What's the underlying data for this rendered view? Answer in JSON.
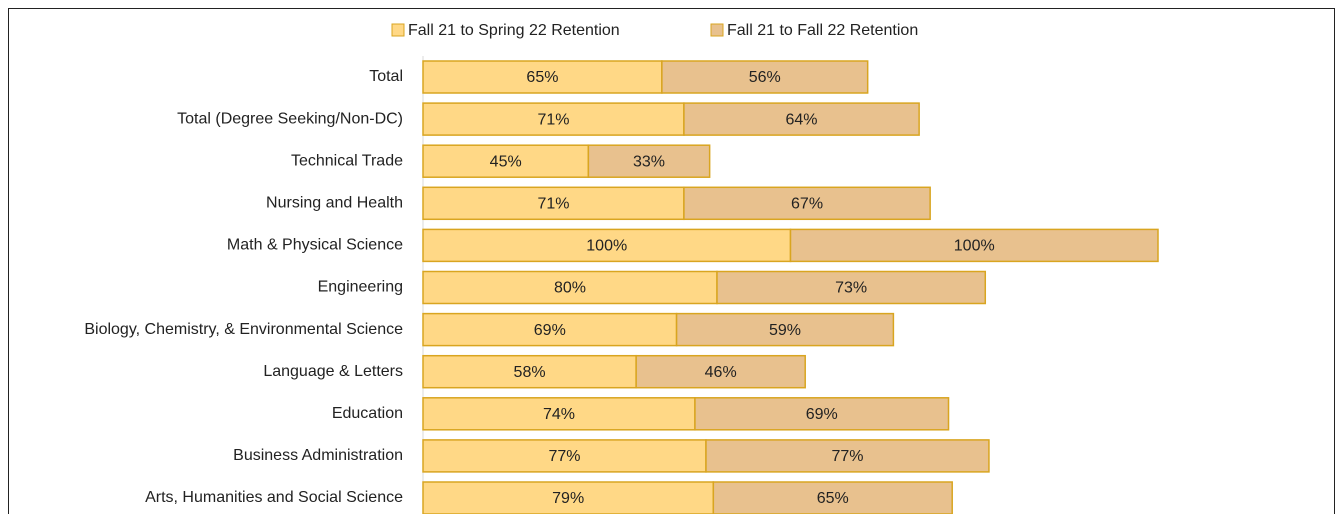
{
  "chart_data": {
    "type": "stacked-bar-horizontal",
    "categories": [
      "Total",
      "Total (Degree Seeking/Non-DC)",
      "Technical Trade",
      "Nursing and Health",
      "Math & Physical Science",
      "Engineering",
      "Biology, Chemistry, & Environmental Science",
      "Language & Letters",
      "Education",
      "Business Administration",
      "Arts, Humanities and Social Science"
    ],
    "series": [
      {
        "name": "Fall 21 to Spring 22 Retention",
        "color": "#FFD886",
        "values": [
          65,
          71,
          45,
          71,
          100,
          80,
          69,
          58,
          74,
          77,
          79
        ],
        "value_labels": [
          "65%",
          "71%",
          "45%",
          "71%",
          "100%",
          "80%",
          "69%",
          "58%",
          "74%",
          "77%",
          "79%"
        ]
      },
      {
        "name": "Fall 21 to Fall 22 Retention",
        "color": "#E8C18E",
        "values": [
          56,
          64,
          33,
          67,
          100,
          73,
          59,
          46,
          69,
          77,
          65
        ],
        "value_labels": [
          "56%",
          "64%",
          "33%",
          "67%",
          "100%",
          "73%",
          "59%",
          "46%",
          "69%",
          "77%",
          "65%"
        ]
      }
    ],
    "legend": "top"
  }
}
